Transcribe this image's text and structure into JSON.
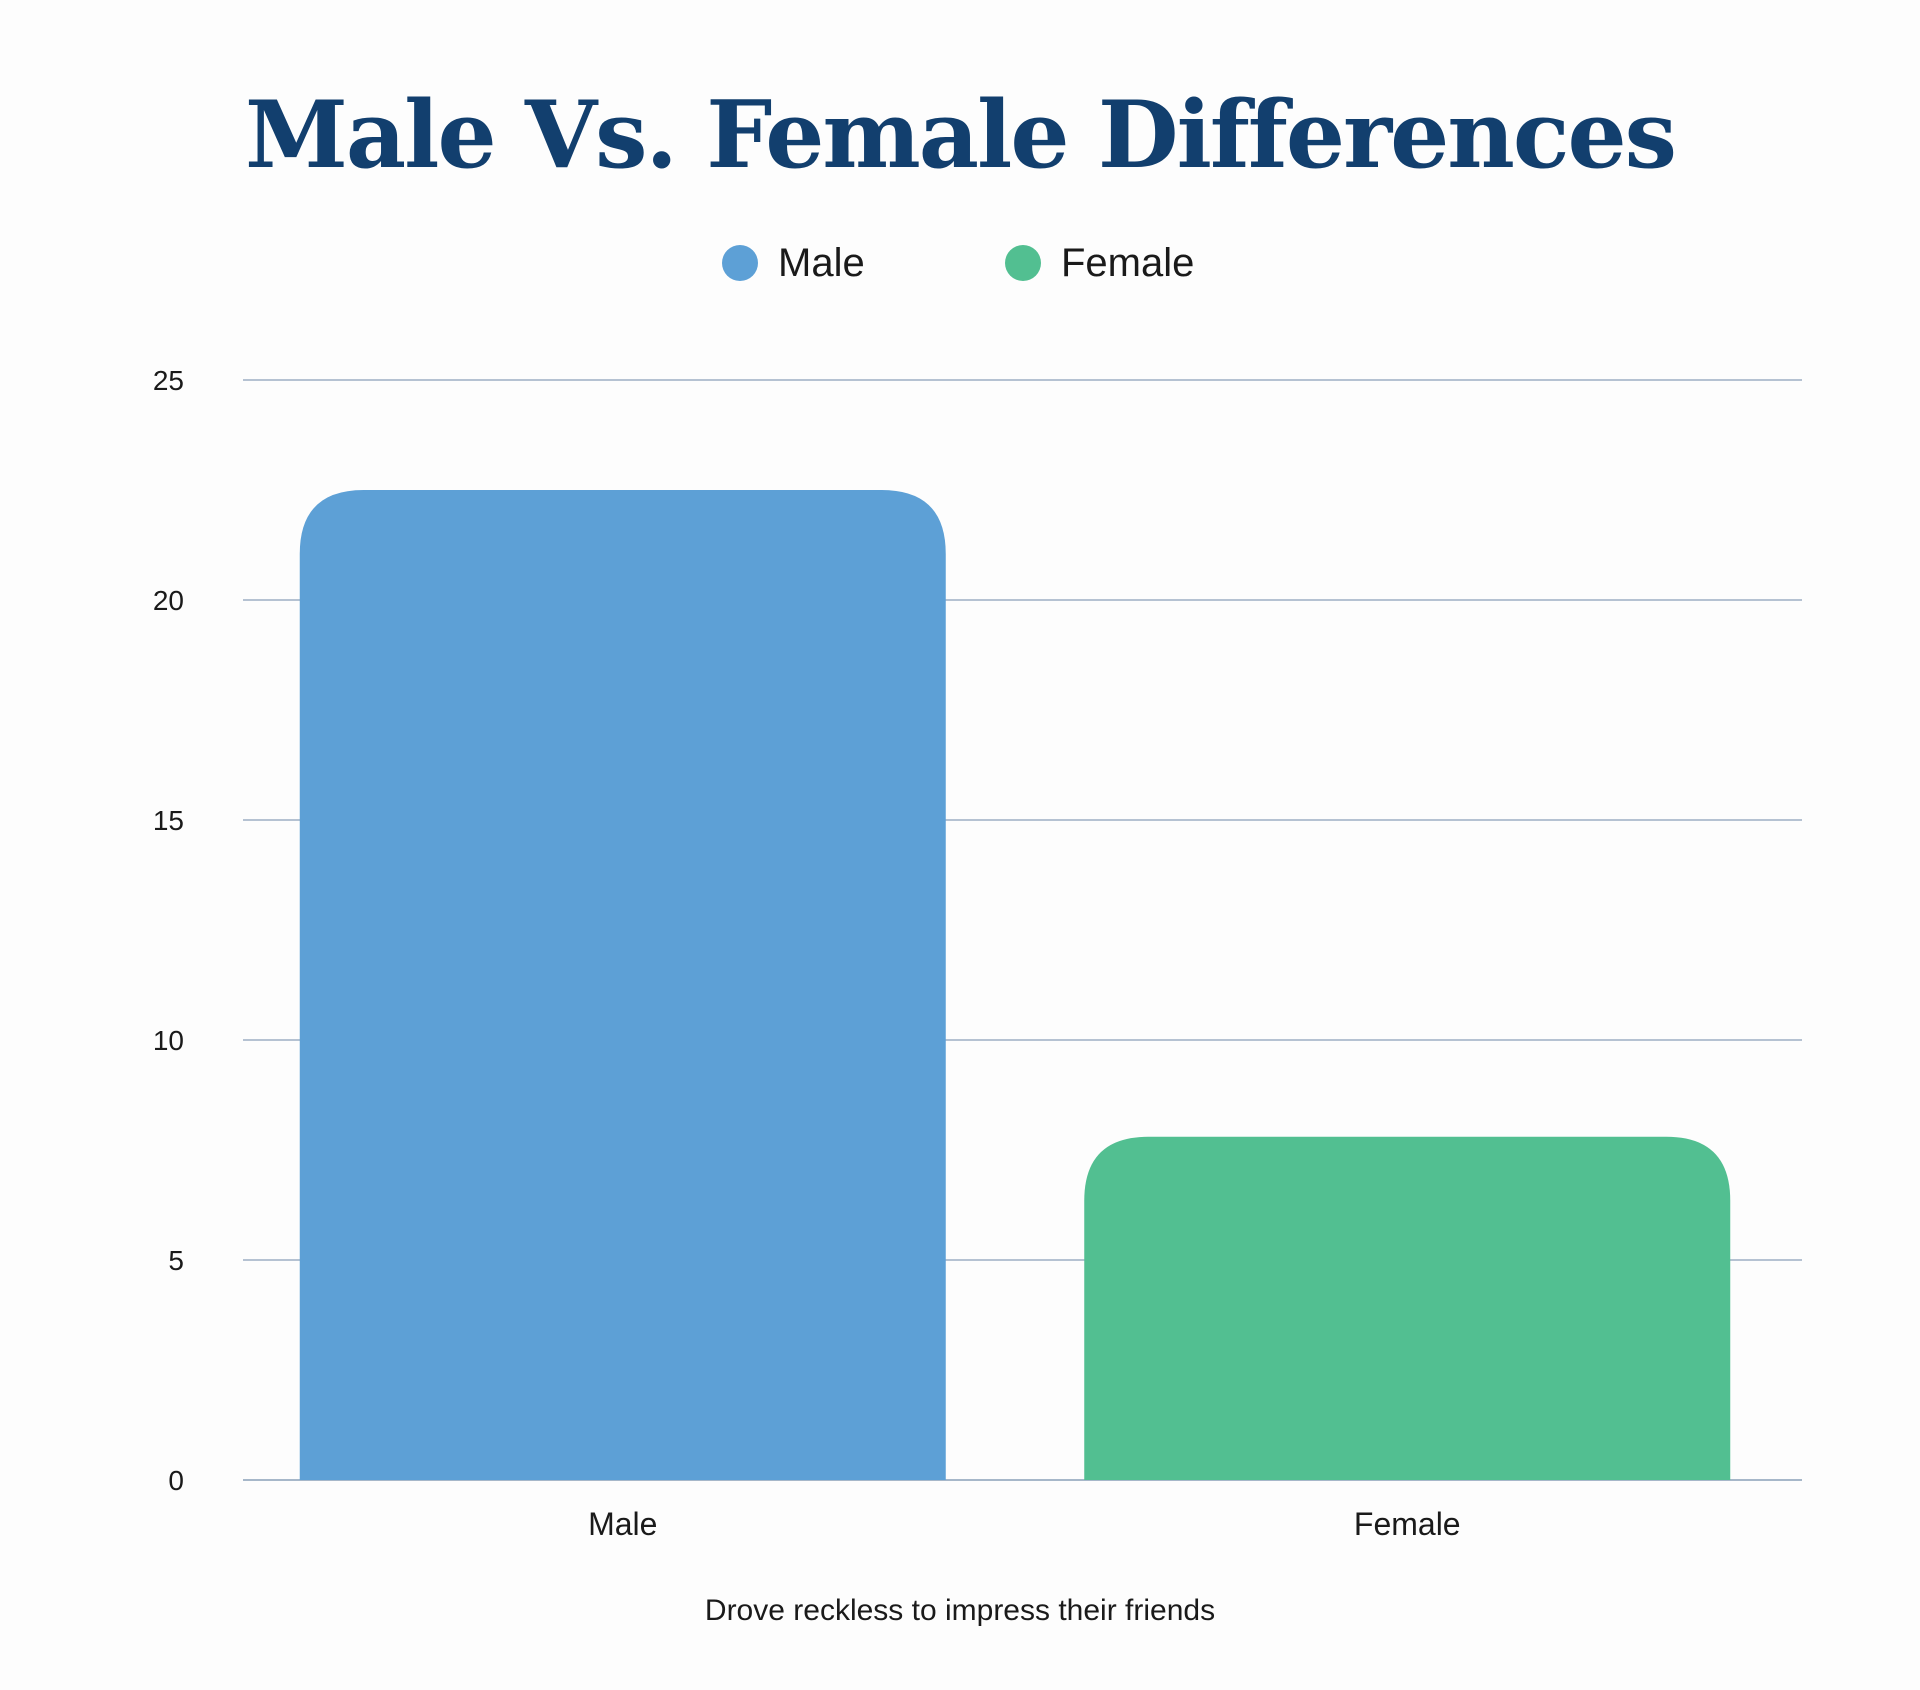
{
  "chart_data": {
    "type": "bar",
    "title": "Male Vs. Female Differences",
    "xlabel": "Drove reckless to impress their friends",
    "ylabel": "",
    "categories": [
      "Male",
      "Female"
    ],
    "values": [
      22.5,
      7.8
    ],
    "colors": [
      "#5da0d6",
      "#52bf91"
    ],
    "ylim": [
      0,
      25
    ],
    "yticks": [
      0,
      5,
      10,
      15,
      20,
      25
    ],
    "grid": true,
    "legend": {
      "placement": "top-center",
      "entries": [
        {
          "label": "Male",
          "color": "#5da0d6"
        },
        {
          "label": "Female",
          "color": "#52bf91"
        }
      ]
    }
  }
}
